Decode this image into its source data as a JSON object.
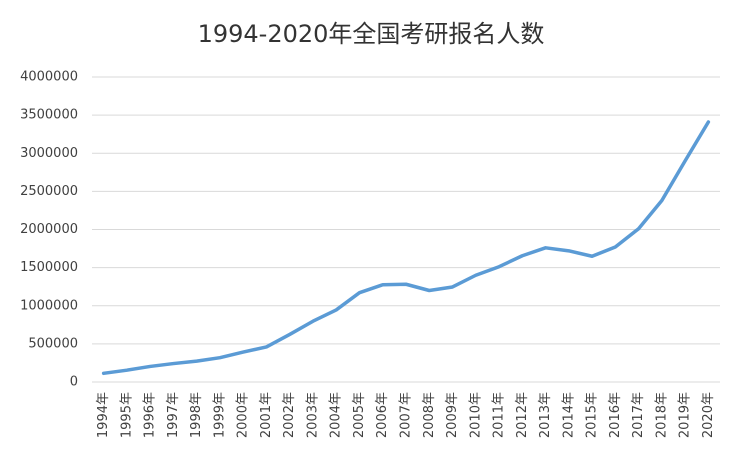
{
  "chart_data": {
    "type": "line",
    "title": "1994-2020年全国考研报名人数",
    "categories": [
      "1994年",
      "1995年",
      "1996年",
      "1997年",
      "1998年",
      "1999年",
      "2000年",
      "2001年",
      "2002年",
      "2003年",
      "2004年",
      "2005年",
      "2006年",
      "2007年",
      "2008年",
      "2009年",
      "2010年",
      "2011年",
      "2012年",
      "2013年",
      "2014年",
      "2015年",
      "2016年",
      "2017年",
      "2018年",
      "2019年",
      "2020年"
    ],
    "values": [
      114000,
      155000,
      204000,
      242000,
      274000,
      319000,
      392000,
      460000,
      624000,
      797000,
      945000,
      1171000,
      1275000,
      1282000,
      1200000,
      1246000,
      1400000,
      1512000,
      1656000,
      1760000,
      1720000,
      1649000,
      1770000,
      2010000,
      2380000,
      2900000,
      3410000
    ],
    "color": "#5b9bd5",
    "ylim": [
      0,
      4000000
    ],
    "yticks": [
      0,
      500000,
      1000000,
      1500000,
      2000000,
      2500000,
      3000000,
      3500000,
      4000000
    ],
    "grid": true
  }
}
